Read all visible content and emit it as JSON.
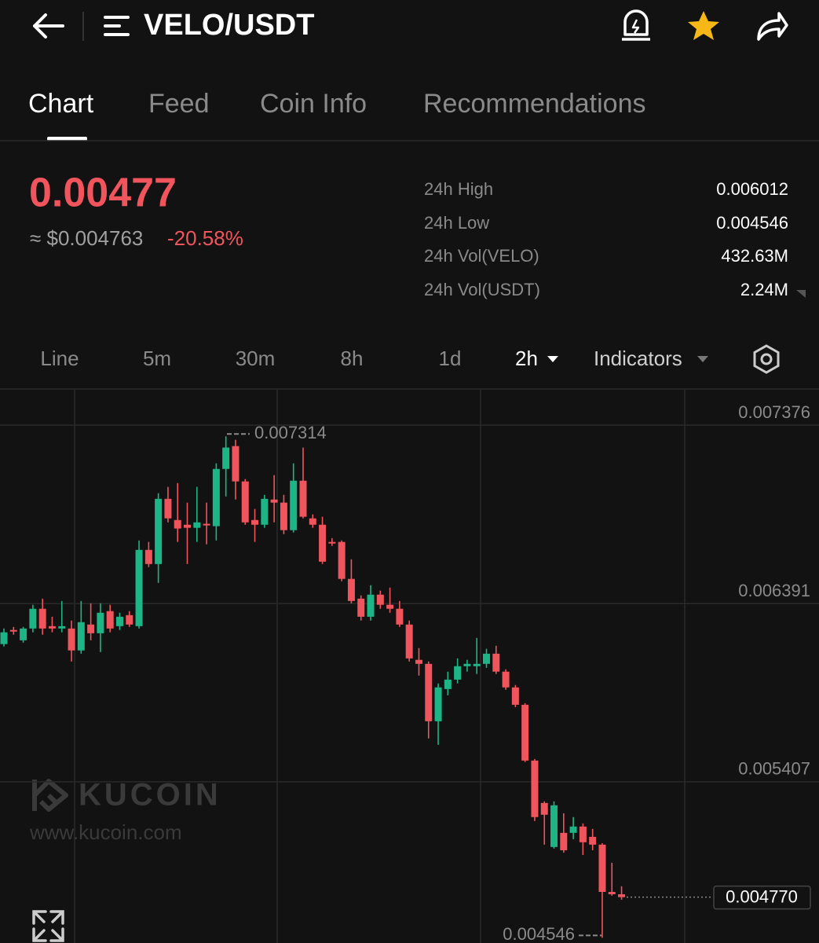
{
  "header": {
    "pair": "VELO/USDT"
  },
  "tabs": [
    "Chart",
    "Feed",
    "Coin Info",
    "Recommendations"
  ],
  "price": {
    "last": "0.00477",
    "usd": "≈ $0.004763",
    "change": "-20.58%"
  },
  "stats": [
    {
      "label": "24h High",
      "value": "0.006012"
    },
    {
      "label": "24h Low",
      "value": "0.004546"
    },
    {
      "label": "24h Vol(VELO)",
      "value": "432.63M"
    },
    {
      "label": "24h Vol(USDT)",
      "value": "2.24M"
    }
  ],
  "timeframes": [
    "Line",
    "5m",
    "30m",
    "8h",
    "1d",
    "2h",
    "Indicators"
  ],
  "watermark": {
    "brand": "KUCOIN",
    "url": "www.kucoin.com"
  },
  "chart_data": {
    "type": "candlestick",
    "up_color": "#1db586",
    "down_color": "#f0545c",
    "ylim": [
      0.004517,
      0.007571
    ],
    "yticks": [
      0.007376,
      0.006391,
      0.005407
    ],
    "grid": true,
    "annotations": {
      "high": 0.007314,
      "low": 0.004546,
      "last": {
        "value": 0.00477,
        "label": "0.004770"
      }
    },
    "open": [
      0.006167,
      0.006245,
      0.006188,
      0.006253,
      0.006362,
      0.006266,
      0.006253,
      0.006253,
      0.006132,
      0.006275,
      0.006227,
      0.006349,
      0.006266,
      0.006327,
      0.006266,
      0.006687,
      0.006609,
      0.006969,
      0.006852,
      0.006826,
      0.006809,
      0.006831,
      0.006818,
      0.007134,
      0.00726,
      0.007065,
      0.006852,
      0.006826,
      0.006965,
      0.006948,
      0.006796,
      0.007069,
      0.006861,
      0.006826,
      0.006731,
      0.006731,
      0.006527,
      0.006418,
      0.006318,
      0.00644,
      0.006384,
      0.006362,
      0.006275,
      0.00608,
      0.006058,
      0.005741,
      0.005919,
      0.005971,
      0.006045,
      0.006045,
      0.006058,
      0.006114,
      0.006015,
      0.005928,
      0.005832,
      0.005524,
      0.00529,
      0.005047,
      0.005125,
      0.005125,
      0.00516,
      0.005103,
      0.00506,
      0.004799,
      0.004786
    ],
    "high": [
      0.006253,
      0.006262,
      0.006262,
      0.006384,
      0.006418,
      0.006318,
      0.006405,
      0.006297,
      0.006405,
      0.006392,
      0.006392,
      0.006384,
      0.00634,
      0.006349,
      0.006739,
      0.006731,
      0.007,
      0.007035,
      0.007056,
      0.006948,
      0.007035,
      0.006948,
      0.007165,
      0.007314,
      0.007295,
      0.007078,
      0.006913,
      0.006991,
      0.0071,
      0.006991,
      0.007165,
      0.007252,
      0.006883,
      0.00687,
      0.006752,
      0.006739,
      0.006635,
      0.006436,
      0.006492,
      0.006462,
      0.006479,
      0.006405,
      0.006297,
      0.006145,
      0.006071,
      0.00595,
      0.006015,
      0.006088,
      0.00608,
      0.006201,
      0.006141,
      0.006158,
      0.006028,
      0.005941,
      0.005841,
      0.005533,
      0.005299,
      0.005299,
      0.005233,
      0.005212,
      0.005177,
      0.005147,
      0.005068,
      0.00496,
      0.00483
    ],
    "low": [
      0.006154,
      0.006219,
      0.006175,
      0.006232,
      0.006219,
      0.006232,
      0.006232,
      0.006071,
      0.006114,
      0.006188,
      0.006123,
      0.006232,
      0.006245,
      0.006262,
      0.006253,
      0.006592,
      0.006505,
      0.006839,
      0.006731,
      0.006609,
      0.006731,
      0.006718,
      0.006739,
      0.006982,
      0.006965,
      0.006826,
      0.006731,
      0.006809,
      0.006839,
      0.006774,
      0.006783,
      0.006861,
      0.006809,
      0.006609,
      0.006709,
      0.006514,
      0.006392,
      0.006297,
      0.006297,
      0.006362,
      0.00634,
      0.006262,
      0.006071,
      0.005993,
      0.005646,
      0.005611,
      0.005884,
      0.00595,
      0.006015,
      0.006002,
      0.006036,
      0.006002,
      0.005915,
      0.005819,
      0.005516,
      0.00519,
      0.00506,
      0.005038,
      0.005016,
      0.00509,
      0.005003,
      0.005029,
      0.004546,
      0.004778,
      0.004756
    ],
    "close": [
      0.006232,
      0.006236,
      0.006253,
      0.006362,
      0.006253,
      0.006253,
      0.006266,
      0.006132,
      0.006288,
      0.006227,
      0.00634,
      0.006253,
      0.006318,
      0.006275,
      0.006687,
      0.006609,
      0.006969,
      0.006861,
      0.006805,
      0.006809,
      0.006839,
      0.006822,
      0.007134,
      0.007252,
      0.007065,
      0.006839,
      0.006826,
      0.006969,
      0.006948,
      0.006796,
      0.007069,
      0.00687,
      0.006826,
      0.006622,
      0.006722,
      0.006527,
      0.006405,
      0.006318,
      0.00644,
      0.006384,
      0.006362,
      0.006275,
      0.006088,
      0.006058,
      0.005741,
      0.005928,
      0.005971,
      0.006045,
      0.006058,
      0.006058,
      0.006114,
      0.006015,
      0.005928,
      0.005832,
      0.005524,
      0.005212,
      0.005225,
      0.005277,
      0.005029,
      0.00516,
      0.005073,
      0.00506,
      0.004799,
      0.004786,
      0.00477
    ]
  }
}
